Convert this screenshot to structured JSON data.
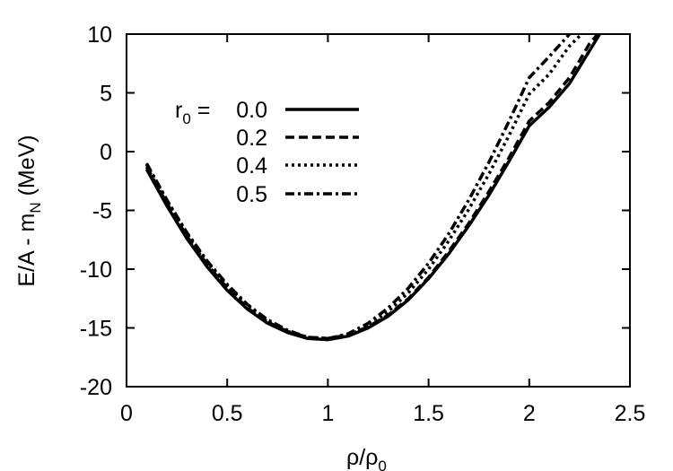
{
  "chart_data": {
    "type": "line",
    "xlabel": "ρ/ρ",
    "xlabel_sub": "0",
    "ylabel": "E/A - m",
    "ylabel_sub": "N",
    "ylabel_suffix": " (MeV)",
    "xlim": [
      0,
      2.5
    ],
    "ylim": [
      -20,
      10
    ],
    "xticks": [
      0,
      0.5,
      1,
      1.5,
      2,
      2.5
    ],
    "xtick_labels": [
      "0",
      "0.5",
      "1",
      "1.5",
      "2",
      "2.5"
    ],
    "yticks": [
      -20,
      -15,
      -10,
      -5,
      0,
      5,
      10
    ],
    "ytick_labels": [
      "-20",
      "-15",
      "-10",
      "-5",
      "0",
      "5",
      "10"
    ],
    "grid": false,
    "legend_position": "top-left",
    "legend_title": "r",
    "legend_title_sub": "0",
    "legend_title_eq": " = ",
    "series": [
      {
        "name": "0.0",
        "style": "solid",
        "x": [
          0.1,
          0.2,
          0.3,
          0.4,
          0.5,
          0.6,
          0.7,
          0.8,
          0.9,
          1.0,
          1.1,
          1.2,
          1.3,
          1.4,
          1.5,
          1.6,
          1.7,
          1.8,
          1.9,
          2.0,
          2.1,
          2.2,
          2.3,
          2.35
        ],
        "y": [
          -1.5,
          -4.6,
          -7.4,
          -9.8,
          -11.8,
          -13.4,
          -14.6,
          -15.4,
          -15.9,
          -16.0,
          -15.7,
          -15.0,
          -14.0,
          -12.6,
          -10.8,
          -8.7,
          -6.3,
          -3.7,
          -0.8,
          2.2,
          3.8,
          5.8,
          8.6,
          10.0
        ]
      },
      {
        "name": "0.2",
        "style": "dashed",
        "x": [
          0.1,
          0.2,
          0.3,
          0.4,
          0.5,
          0.6,
          0.7,
          0.8,
          0.9,
          1.0,
          1.1,
          1.2,
          1.3,
          1.4,
          1.5,
          1.6,
          1.7,
          1.8,
          1.9,
          2.0,
          2.1,
          2.2,
          2.3,
          2.34
        ],
        "y": [
          -1.3,
          -4.4,
          -7.2,
          -9.6,
          -11.6,
          -13.3,
          -14.5,
          -15.3,
          -15.8,
          -15.9,
          -15.6,
          -14.9,
          -13.9,
          -12.5,
          -10.7,
          -8.5,
          -6.1,
          -3.4,
          -0.5,
          2.6,
          4.2,
          6.3,
          9.2,
          10.0
        ]
      },
      {
        "name": "0.4",
        "style": "dotted",
        "x": [
          0.1,
          0.2,
          0.3,
          0.4,
          0.5,
          0.6,
          0.7,
          0.8,
          0.9,
          1.0,
          1.1,
          1.2,
          1.3,
          1.4,
          1.5,
          1.6,
          1.7,
          1.8,
          1.9,
          2.0,
          2.1,
          2.2,
          2.26
        ],
        "y": [
          -1.1,
          -4.2,
          -7.0,
          -9.4,
          -11.4,
          -13.1,
          -14.4,
          -15.3,
          -15.8,
          -15.9,
          -15.6,
          -14.8,
          -13.6,
          -12.0,
          -10.0,
          -7.6,
          -4.9,
          -1.9,
          1.4,
          4.9,
          6.6,
          9.0,
          10.0
        ]
      },
      {
        "name": "0.5",
        "style": "dashdot",
        "x": [
          0.1,
          0.2,
          0.3,
          0.4,
          0.5,
          0.6,
          0.7,
          0.8,
          0.9,
          1.0,
          1.1,
          1.2,
          1.3,
          1.4,
          1.5,
          1.6,
          1.7,
          1.8,
          1.9,
          2.0,
          2.1,
          2.2
        ],
        "y": [
          -1.0,
          -4.1,
          -6.9,
          -9.3,
          -11.3,
          -13.0,
          -14.3,
          -15.2,
          -15.8,
          -15.9,
          -15.5,
          -14.6,
          -13.3,
          -11.6,
          -9.5,
          -7.0,
          -4.1,
          -0.9,
          2.6,
          6.3,
          8.1,
          10.0
        ]
      }
    ]
  }
}
